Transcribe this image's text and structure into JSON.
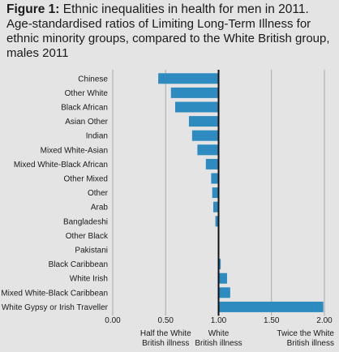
{
  "figure": {
    "label": "Figure 1:",
    "title": "Ethnic inequalities in health for men in 2011.",
    "subtitle": "Age-standardised ratios of Limiting Long-Term Illness for ethnic minority groups, compared to the White British group, males 2011"
  },
  "colors": {
    "bar": "#2e8bbf",
    "background": "#e4e4e4",
    "gridline": "#a8a8a8",
    "reference_line": "#111111"
  },
  "chart_data": {
    "type": "bar",
    "orientation": "horizontal",
    "baseline": 1.0,
    "categories": [
      "Chinese",
      "Other White",
      "Black African",
      "Asian Other",
      "Indian",
      "Mixed White-Asian",
      "Mixed White-Black African",
      "Other Mixed",
      "Other",
      "Arab",
      "Bangladeshi",
      "Other Black",
      "Pakistani",
      "Black Caribbean",
      "White Irish",
      "Mixed White-Black Caribbean",
      "White Gypsy or Irish Traveller"
    ],
    "values": [
      0.43,
      0.55,
      0.59,
      0.72,
      0.75,
      0.8,
      0.88,
      0.93,
      0.94,
      0.95,
      0.97,
      1.0,
      1.0,
      1.02,
      1.08,
      1.11,
      1.99
    ],
    "xlim": [
      0,
      2.0
    ],
    "xticks": [
      "0.00",
      "0.50",
      "1.00",
      "1.50",
      "2.00"
    ],
    "xtick_values": [
      0,
      0.5,
      1.0,
      1.5,
      2.0
    ],
    "gridlines": true,
    "annotations": [
      {
        "value": 0.5,
        "lines": [
          "Half the White",
          "British illness"
        ]
      },
      {
        "value": 1.0,
        "lines": [
          "White",
          "British illness"
        ]
      },
      {
        "value": 2.0,
        "lines": [
          "Twice the White",
          "British illness"
        ]
      }
    ]
  }
}
